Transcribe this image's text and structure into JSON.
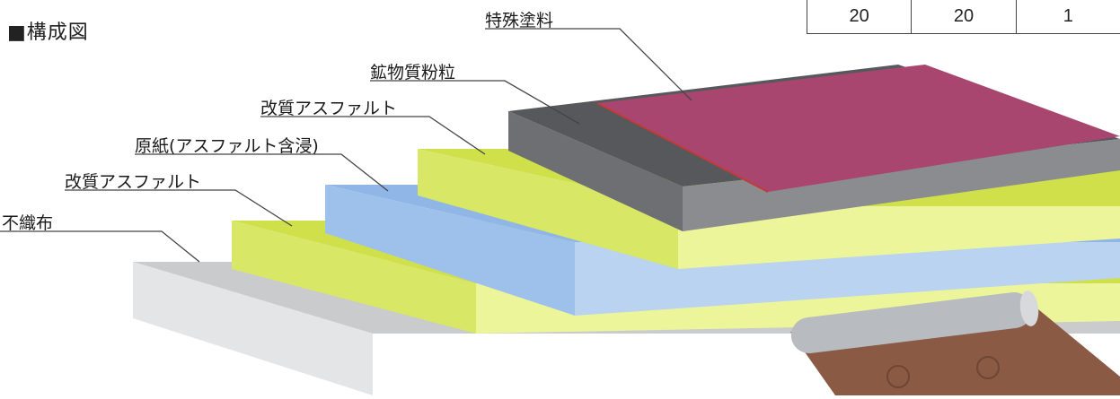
{
  "title": "■構成図",
  "layers": [
    {
      "label": "特殊塗料",
      "color": "#a9466f"
    },
    {
      "label": "鉱物質粉粒",
      "color": "#56585b"
    },
    {
      "label": "改質アスファルト",
      "color": "#cfe04a"
    },
    {
      "label": "原紙(アスファルト含浸)",
      "color": "#8fb6e6"
    },
    {
      "label": "改質アスファルト",
      "color": "#cfe04a"
    },
    {
      "label": "不織布",
      "color": "#c9cbcd"
    }
  ],
  "table_row": [
    "20",
    "20",
    "1"
  ]
}
